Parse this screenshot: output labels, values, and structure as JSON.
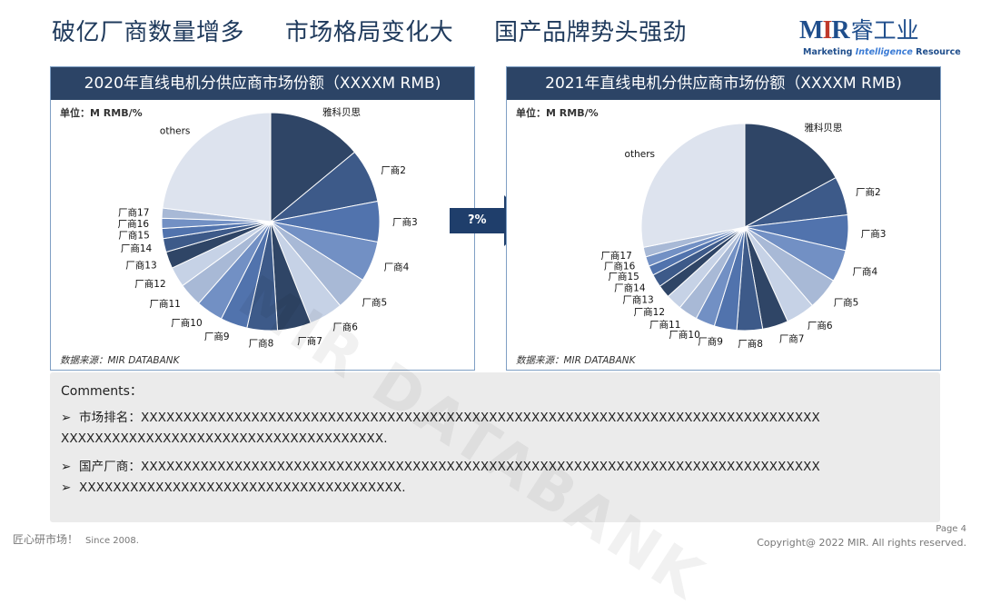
{
  "title": [
    "破亿厂商数量增多",
    "市场格局变化大",
    "国产品牌势头强劲"
  ],
  "logo": {
    "mark_m": "M",
    "mark_i": "I",
    "mark_r": "R",
    "cn": "睿工业",
    "tag_a": "Marketing ",
    "tag_b": "Intelligence",
    "tag_c": " Resource"
  },
  "colors": {
    "header": "#2c4466",
    "accent": "#1f4e8c",
    "arrow": "#1f3e6b",
    "pie": [
      "#2f4566",
      "#3d5a89",
      "#5173ad",
      "#7290c4",
      "#a8b9d6",
      "#c6d2e6",
      "#2f4566",
      "#3d5a89",
      "#5173ad",
      "#7290c4",
      "#a8b9d6",
      "#c6d2e6",
      "#2f4566",
      "#3d5a89",
      "#5173ad",
      "#7290c4",
      "#a8b9d6",
      "#dde3ee"
    ]
  },
  "arrow_label": "?%",
  "chart_data": [
    {
      "type": "pie",
      "title": "2020年直线电机分供应商市场份额（XXXXM RMB)",
      "unit": "单位：M RMB/%",
      "source": "数据来源：MIR DATABANK",
      "categories": [
        "雅科贝思",
        "厂商2",
        "厂商3",
        "厂商4",
        "厂商5",
        "厂商6",
        "厂商7",
        "厂商8",
        "厂商9",
        "厂商10",
        "厂商11",
        "厂商12",
        "厂商13",
        "厂商14",
        "厂商15",
        "厂商16",
        "厂商17",
        "others"
      ],
      "values": [
        14.0,
        8.0,
        6.0,
        6.0,
        5.0,
        5.0,
        5.0,
        4.5,
        4.0,
        4.0,
        3.5,
        3.0,
        2.5,
        2.0,
        1.5,
        1.5,
        1.5,
        23.0
      ]
    },
    {
      "type": "pie",
      "title": "2021年直线电机分供应商市场份额（XXXXM RMB)",
      "unit": "单位：M RMB/%",
      "source": "数据来源：MIR DATABANK",
      "categories": [
        "雅科贝思",
        "厂商2",
        "厂商3",
        "厂商4",
        "厂商5",
        "厂商6",
        "厂商7",
        "厂商8",
        "厂商9",
        "厂商10",
        "厂商11",
        "厂商12",
        "厂商13",
        "厂商14",
        "厂商15",
        "厂商16",
        "厂商17",
        "others"
      ],
      "values": [
        17.0,
        6.0,
        5.5,
        5.0,
        5.0,
        4.5,
        4.0,
        4.0,
        3.5,
        3.0,
        3.0,
        2.5,
        2.0,
        2.0,
        1.5,
        1.5,
        1.5,
        28.0
      ]
    }
  ],
  "comments": {
    "head": "Comments：",
    "lines": [
      "市场排名：XXXXXXXXXXXXXXXXXXXXXXXXXXXXXXXXXXXXXXXXXXXXXXXXXXXXXXXXXXXXXXXXXXXXXXXXXXXXXXXX",
      "XXXXXXXXXXXXXXXXXXXXXXXXXXXXXXXXXXXXXX.",
      "国产厂商：XXXXXXXXXXXXXXXXXXXXXXXXXXXXXXXXXXXXXXXXXXXXXXXXXXXXXXXXXXXXXXXXXXXXXXXXXXXXXXXX",
      "XXXXXXXXXXXXXXXXXXXXXXXXXXXXXXXXXXXXXX."
    ],
    "bullet": "➢"
  },
  "footer": {
    "slogan": "匠心研市场！",
    "since": "Since 2008.",
    "page": "Page 4",
    "copyright": "Copyright@  2022  MIR.  All  rights  reserved."
  },
  "watermark": "MIR DATABANK"
}
